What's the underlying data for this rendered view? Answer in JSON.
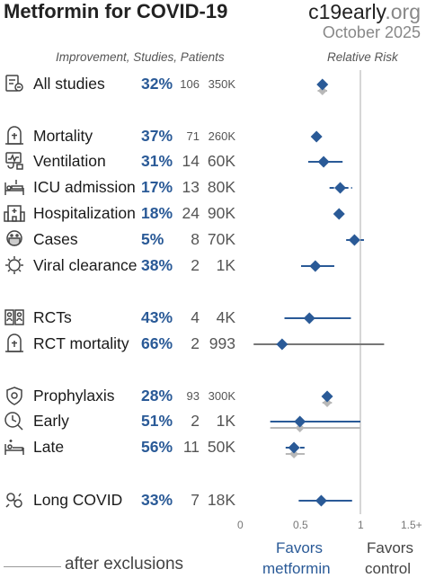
{
  "header": {
    "title": "Metformin for COVID-19",
    "brand_main": "c19early",
    "brand_tld": ".org",
    "date": "October 2025",
    "columns": "Improvement, Studies, Patients",
    "rr_header": "Relative Risk"
  },
  "rows": [
    {
      "icon": "document-icon",
      "label": "All studies",
      "pct": "32%",
      "studies": "106",
      "patients": "350K",
      "size": "sm"
    },
    {
      "icon": "tombstone-icon",
      "label": "Mortality",
      "pct": "37%",
      "studies": "71",
      "patients": "260K",
      "size": "sm"
    },
    {
      "icon": "ventilator-icon",
      "label": "Ventilation",
      "pct": "31%",
      "studies": "14",
      "patients": "60K",
      "size": "lg"
    },
    {
      "icon": "icu-bed-icon",
      "label": "ICU admission",
      "pct": "17%",
      "studies": "13",
      "patients": "80K",
      "size": "lg"
    },
    {
      "icon": "hospital-icon",
      "label": "Hospitalization",
      "pct": "18%",
      "studies": "24",
      "patients": "90K",
      "size": "lg"
    },
    {
      "icon": "masked-face-icon",
      "label": "Cases",
      "pct": "5%",
      "studies": "8",
      "patients": "70K",
      "size": "lg"
    },
    {
      "icon": "virus-icon",
      "label": "Viral clearance",
      "pct": "38%",
      "studies": "2",
      "patients": "1K",
      "size": "lg"
    },
    {
      "icon": "people-icon",
      "label": "RCTs",
      "pct": "43%",
      "studies": "4",
      "patients": "4K",
      "size": "lg"
    },
    {
      "icon": "tombstone-icon",
      "label": "RCT mortality",
      "pct": "66%",
      "studies": "2",
      "patients": "993",
      "size": "lg"
    },
    {
      "icon": "shield-icon",
      "label": "Prophylaxis",
      "pct": "28%",
      "studies": "93",
      "patients": "300K",
      "size": "sm"
    },
    {
      "icon": "clock-icon",
      "label": "Early",
      "pct": "51%",
      "studies": "2",
      "patients": "1K",
      "size": "lg"
    },
    {
      "icon": "patient-bed-icon",
      "label": "Late",
      "pct": "56%",
      "studies": "11",
      "patients": "50K",
      "size": "lg"
    },
    {
      "icon": "long-covid-icon",
      "label": "Long COVID",
      "pct": "33%",
      "studies": "7",
      "patients": "18K",
      "size": "lg"
    }
  ],
  "chart_data": {
    "type": "forest",
    "x_axis": {
      "ticks": [
        "0",
        "0.5",
        "1",
        "1.5+"
      ],
      "range": [
        0,
        1.5
      ],
      "reference_line": 1
    },
    "rows": [
      {
        "label": "All studies",
        "rr": 0.68,
        "ci": [
          0.65,
          0.71
        ],
        "excl_rr": 0.68,
        "excl_ci": [
          0.64,
          0.72
        ]
      },
      {
        "label": "Mortality",
        "rr": 0.63,
        "ci": [
          0.6,
          0.66
        ]
      },
      {
        "label": "Ventilation",
        "rr": 0.69,
        "ci": [
          0.56,
          0.85
        ]
      },
      {
        "label": "ICU admission",
        "rr": 0.83,
        "ci": [
          0.74,
          0.93
        ]
      },
      {
        "label": "Hospitalization",
        "rr": 0.82,
        "ci": [
          0.78,
          0.86
        ]
      },
      {
        "label": "Cases",
        "rr": 0.95,
        "ci": [
          0.88,
          1.03
        ]
      },
      {
        "label": "Viral clearance",
        "rr": 0.62,
        "ci": [
          0.5,
          0.78
        ]
      },
      {
        "label": "RCTs",
        "rr": 0.57,
        "ci": [
          0.36,
          0.92
        ]
      },
      {
        "label": "RCT mortality",
        "rr": 0.34,
        "ci": [
          0.1,
          1.2
        ]
      },
      {
        "label": "Prophylaxis",
        "rr": 0.72,
        "ci": [
          0.69,
          0.75
        ],
        "excl_rr": 0.72,
        "excl_ci": [
          0.68,
          0.76
        ]
      },
      {
        "label": "Early",
        "rr": 0.49,
        "ci": [
          0.24,
          1.0
        ],
        "excl_rr": 0.49,
        "excl_ci": [
          0.24,
          1.0
        ]
      },
      {
        "label": "Late",
        "rr": 0.44,
        "ci": [
          0.37,
          0.53
        ],
        "excl_rr": 0.44,
        "excl_ci": [
          0.37,
          0.53
        ]
      },
      {
        "label": "Long COVID",
        "rr": 0.67,
        "ci": [
          0.48,
          0.93
        ]
      }
    ],
    "favors_treatment": [
      "Favors",
      "metformin"
    ],
    "favors_control": [
      "Favors",
      "control"
    ],
    "legend_exclusions": "after exclusions",
    "colors": {
      "main": "#2a5a97",
      "exclusion": "#b8b8b8",
      "reference": "#d6d6d6"
    }
  }
}
